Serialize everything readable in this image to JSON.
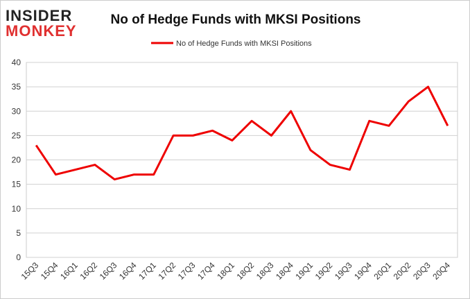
{
  "logo": {
    "line1": "INSIDER",
    "line2": "MONKEY"
  },
  "chart_data": {
    "type": "line",
    "title": "No of Hedge Funds with MKSI Positions",
    "categories": [
      "15Q3",
      "15Q4",
      "16Q1",
      "16Q2",
      "16Q3",
      "16Q4",
      "17Q1",
      "17Q2",
      "17Q3",
      "17Q4",
      "18Q1",
      "18Q2",
      "18Q3",
      "18Q4",
      "19Q1",
      "19Q2",
      "19Q3",
      "19Q4",
      "20Q1",
      "20Q2",
      "20Q3",
      "20Q4"
    ],
    "series": [
      {
        "name": "No of Hedge Funds with MKSI Positions",
        "color": "#ee0000",
        "values": [
          23,
          17,
          18,
          19,
          16,
          17,
          17,
          25,
          25,
          26,
          24,
          28,
          25,
          30,
          22,
          19,
          18,
          28,
          27,
          32,
          35,
          27
        ]
      }
    ],
    "ylim": [
      0,
      40
    ],
    "yticks": [
      0,
      5,
      10,
      15,
      20,
      25,
      30,
      35,
      40
    ],
    "grid": true,
    "legend": "top"
  }
}
